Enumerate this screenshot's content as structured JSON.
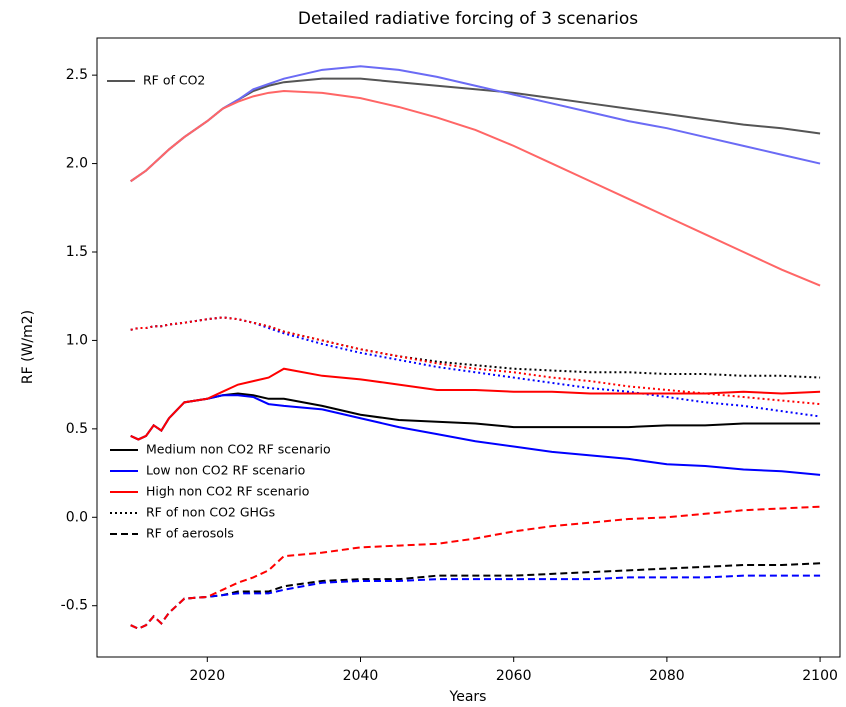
{
  "chart_data": {
    "type": "line",
    "title": "Detailed radiative forcing of 3 scenarios",
    "x_label": "Years",
    "y_label": "RF (W/m2)",
    "x": [
      2010,
      2011,
      2012,
      2013,
      2014,
      2015,
      2017,
      2020,
      2022,
      2024,
      2026,
      2028,
      2030,
      2035,
      2040,
      2045,
      2050,
      2055,
      2060,
      2065,
      2070,
      2075,
      2080,
      2085,
      2090,
      2095,
      2100
    ],
    "xlim": [
      2005.6,
      2102.6
    ],
    "ylim": [
      -0.79,
      2.71
    ],
    "xticks": [
      2020,
      2040,
      2060,
      2080,
      2100
    ],
    "yticks": [
      -0.5,
      {
        "value": 0,
        "label": "0.0"
      },
      0.5,
      {
        "value": 1,
        "label": "1.0"
      },
      1.5,
      {
        "value": 2,
        "label": "2.0"
      },
      2.5
    ],
    "grid": false,
    "legend": "upper left",
    "series": [
      {
        "name": "RF of CO2",
        "color": "#555555",
        "style": "solid",
        "values": [
          1.9,
          1.93,
          1.96,
          2.0,
          2.04,
          2.08,
          2.15,
          2.24,
          2.31,
          2.36,
          2.41,
          2.44,
          2.46,
          2.48,
          2.48,
          2.46,
          2.44,
          2.42,
          2.4,
          2.37,
          2.34,
          2.31,
          2.28,
          2.25,
          2.22,
          2.2,
          2.17
        ]
      },
      {
        "color": "#6b6bf5",
        "style": "solid",
        "values": [
          1.9,
          1.93,
          1.96,
          2.0,
          2.04,
          2.08,
          2.15,
          2.24,
          2.31,
          2.36,
          2.42,
          2.45,
          2.48,
          2.53,
          2.55,
          2.53,
          2.49,
          2.44,
          2.39,
          2.34,
          2.29,
          2.24,
          2.2,
          2.15,
          2.1,
          2.05,
          2.0
        ]
      },
      {
        "color": "#ff6666",
        "style": "solid",
        "values": [
          1.9,
          1.93,
          1.96,
          2.0,
          2.04,
          2.08,
          2.15,
          2.24,
          2.31,
          2.35,
          2.38,
          2.4,
          2.41,
          2.4,
          2.37,
          2.32,
          2.26,
          2.19,
          2.1,
          2.0,
          1.9,
          1.8,
          1.7,
          1.6,
          1.5,
          1.4,
          1.31
        ]
      },
      {
        "color": "#000000",
        "style": "dotted",
        "values": [
          1.06,
          1.07,
          1.07,
          1.08,
          1.08,
          1.09,
          1.1,
          1.12,
          1.13,
          1.12,
          1.1,
          1.08,
          1.05,
          1.0,
          0.95,
          0.91,
          0.88,
          0.86,
          0.84,
          0.83,
          0.82,
          0.82,
          0.81,
          0.81,
          0.8,
          0.8,
          0.79
        ]
      },
      {
        "color": "#0000ff",
        "style": "dotted",
        "values": [
          1.06,
          1.07,
          1.07,
          1.08,
          1.08,
          1.09,
          1.1,
          1.12,
          1.13,
          1.12,
          1.1,
          1.07,
          1.04,
          0.98,
          0.93,
          0.89,
          0.85,
          0.82,
          0.79,
          0.76,
          0.73,
          0.71,
          0.68,
          0.65,
          0.63,
          0.6,
          0.57
        ]
      },
      {
        "color": "#ff0000",
        "style": "dotted",
        "values": [
          1.06,
          1.07,
          1.07,
          1.08,
          1.08,
          1.09,
          1.1,
          1.12,
          1.13,
          1.12,
          1.1,
          1.08,
          1.05,
          1.0,
          0.95,
          0.91,
          0.87,
          0.84,
          0.82,
          0.79,
          0.77,
          0.74,
          0.72,
          0.7,
          0.68,
          0.66,
          0.64
        ]
      },
      {
        "color": "#000000",
        "style": "solid",
        "values": [
          0.46,
          0.44,
          0.46,
          0.52,
          0.49,
          0.56,
          0.65,
          0.67,
          0.69,
          0.7,
          0.69,
          0.67,
          0.67,
          0.63,
          0.58,
          0.55,
          0.54,
          0.53,
          0.51,
          0.51,
          0.51,
          0.51,
          0.52,
          0.52,
          0.53,
          0.53,
          0.53
        ]
      },
      {
        "color": "#0000ff",
        "style": "solid",
        "values": [
          0.46,
          0.44,
          0.46,
          0.52,
          0.49,
          0.56,
          0.65,
          0.67,
          0.69,
          0.69,
          0.68,
          0.64,
          0.63,
          0.61,
          0.56,
          0.51,
          0.47,
          0.43,
          0.4,
          0.37,
          0.35,
          0.33,
          0.3,
          0.29,
          0.27,
          0.26,
          0.24
        ]
      },
      {
        "color": "#ff0000",
        "style": "solid",
        "values": [
          0.46,
          0.44,
          0.46,
          0.52,
          0.49,
          0.56,
          0.65,
          0.67,
          0.71,
          0.75,
          0.77,
          0.79,
          0.84,
          0.8,
          0.78,
          0.75,
          0.72,
          0.72,
          0.71,
          0.71,
          0.7,
          0.7,
          0.7,
          0.7,
          0.71,
          0.7,
          0.71
        ]
      },
      {
        "color": "#000000",
        "style": "dashed",
        "values": [
          -0.61,
          -0.63,
          -0.61,
          -0.56,
          -0.6,
          -0.54,
          -0.46,
          -0.45,
          -0.44,
          -0.42,
          -0.42,
          -0.42,
          -0.39,
          -0.36,
          -0.35,
          -0.35,
          -0.33,
          -0.33,
          -0.33,
          -0.32,
          -0.31,
          -0.3,
          -0.29,
          -0.28,
          -0.27,
          -0.27,
          -0.26
        ]
      },
      {
        "color": "#0000ff",
        "style": "dashed",
        "values": [
          -0.61,
          -0.63,
          -0.61,
          -0.56,
          -0.6,
          -0.54,
          -0.46,
          -0.45,
          -0.44,
          -0.43,
          -0.43,
          -0.43,
          -0.41,
          -0.37,
          -0.36,
          -0.36,
          -0.35,
          -0.35,
          -0.35,
          -0.35,
          -0.35,
          -0.34,
          -0.34,
          -0.34,
          -0.33,
          -0.33,
          -0.33
        ]
      },
      {
        "color": "#ff0000",
        "style": "dashed",
        "values": [
          -0.61,
          -0.63,
          -0.61,
          -0.56,
          -0.6,
          -0.54,
          -0.46,
          -0.45,
          -0.41,
          -0.37,
          -0.34,
          -0.3,
          -0.22,
          -0.2,
          -0.17,
          -0.16,
          -0.15,
          -0.12,
          -0.08,
          -0.05,
          -0.03,
          -0.01,
          0.0,
          0.02,
          0.04,
          0.05,
          0.06
        ]
      }
    ],
    "legend2": {
      "loc": "lower left",
      "entries": [
        {
          "name": "Medium non CO2 RF scenario",
          "color": "#000000",
          "style": "solid"
        },
        {
          "name": "Low non CO2 RF scenario",
          "color": "#0000ff",
          "style": "solid"
        },
        {
          "name": "High non CO2 RF scenario",
          "color": "#ff0000",
          "style": "solid"
        },
        {
          "name": "RF of non CO2 GHGs",
          "color": "#000000",
          "style": "dotted"
        },
        {
          "name": "RF of aerosols",
          "color": "#000000",
          "style": "dashed"
        }
      ]
    }
  }
}
